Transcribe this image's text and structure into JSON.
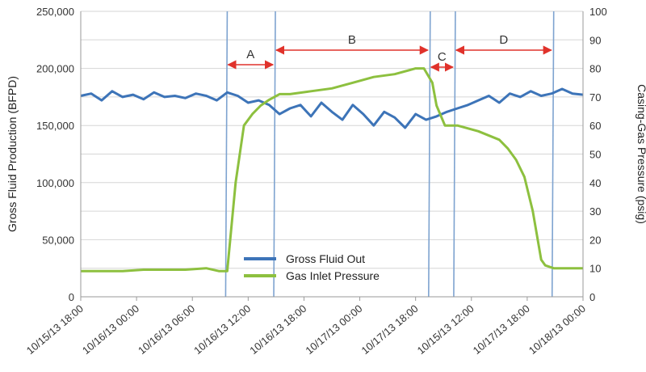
{
  "chart_data": {
    "type": "line",
    "title": "",
    "ylabel_left": "Gross Fluid Production (BFPD)",
    "ylabel_right": "Casing-Gas Pressure (psig)",
    "ylim_left": [
      0,
      250000
    ],
    "ylim_right": [
      0,
      100
    ],
    "yticks_left": [
      "0",
      "50,000",
      "100,000",
      "150,000",
      "200,000",
      "250,000"
    ],
    "yticks_right": [
      "0",
      "10",
      "20",
      "30",
      "40",
      "50",
      "60",
      "70",
      "80",
      "90",
      "100"
    ],
    "x_tick_labels": [
      "10/15/13 18:00",
      "10/16/13 00:00",
      "10/16/13 06:00",
      "10/16/13 12:00",
      "10/16/13 18:00",
      "10/17/13 00:00",
      "10/17/13 18:00",
      "10/15/13 12:00",
      "10/17/13 18:00",
      "10/18/13 00:00"
    ],
    "grid": "horizontal",
    "legend_position": "bottom-center",
    "colors": {
      "gross_fluid": "#3d74b8",
      "gas_inlet": "#8dc03f",
      "phase_line": "#7ea3d0",
      "arrow": "#e0322b"
    },
    "phase_boundaries_x_index": [
      3.5,
      4.65,
      8.35,
      8.95,
      11.3
    ],
    "phases": [
      {
        "label": "A",
        "from": 3.5,
        "to": 4.65
      },
      {
        "label": "B",
        "from": 4.65,
        "to": 8.35
      },
      {
        "label": "C",
        "from": 8.35,
        "to": 8.95
      },
      {
        "label": "D",
        "from": 8.95,
        "to": 11.3
      }
    ],
    "series": [
      {
        "name": "Gross Fluid Out",
        "axis": "left",
        "x": [
          0,
          0.25,
          0.5,
          0.75,
          1,
          1.25,
          1.5,
          1.75,
          2,
          2.25,
          2.5,
          2.75,
          3,
          3.25,
          3.5,
          3.75,
          4,
          4.25,
          4.5,
          4.75,
          5,
          5.25,
          5.5,
          5.75,
          6,
          6.25,
          6.5,
          6.75,
          7,
          7.25,
          7.5,
          7.75,
          8,
          8.25,
          8.5,
          8.75,
          9,
          9.25,
          9.5,
          9.75,
          10,
          10.25,
          10.5,
          10.75,
          11,
          11.25,
          11.5,
          11.75,
          12
        ],
        "values": [
          176000,
          178000,
          172000,
          180000,
          175000,
          177000,
          173000,
          179000,
          175000,
          176000,
          174000,
          178000,
          176000,
          172000,
          179000,
          176000,
          170000,
          172000,
          168000,
          160000,
          165000,
          168000,
          158000,
          170000,
          162000,
          155000,
          168000,
          160000,
          150000,
          162000,
          157000,
          148000,
          160000,
          155000,
          158000,
          162000,
          165000,
          168000,
          172000,
          176000,
          170000,
          178000,
          175000,
          180000,
          176000,
          178000,
          182000,
          178000,
          177000
        ]
      },
      {
        "name": "Gas Inlet Pressure",
        "axis": "right",
        "x": [
          0,
          0.5,
          1,
          1.5,
          2,
          2.5,
          3,
          3.3,
          3.5,
          3.7,
          3.9,
          4.1,
          4.3,
          4.5,
          4.75,
          5,
          5.5,
          6,
          6.5,
          7,
          7.5,
          8,
          8.2,
          8.4,
          8.5,
          8.7,
          8.9,
          9,
          9.5,
          10,
          10.2,
          10.4,
          10.6,
          10.8,
          11,
          11.1,
          11.3,
          11.6,
          12
        ],
        "values": [
          9,
          9,
          9,
          9.5,
          9.5,
          9.5,
          10,
          9,
          9,
          40,
          60,
          64,
          67,
          69,
          71,
          71,
          72,
          73,
          75,
          77,
          78,
          80,
          80,
          75,
          67,
          60,
          60,
          60,
          58,
          55,
          52,
          48,
          42,
          30,
          13,
          11,
          10,
          10,
          10
        ]
      }
    ]
  }
}
